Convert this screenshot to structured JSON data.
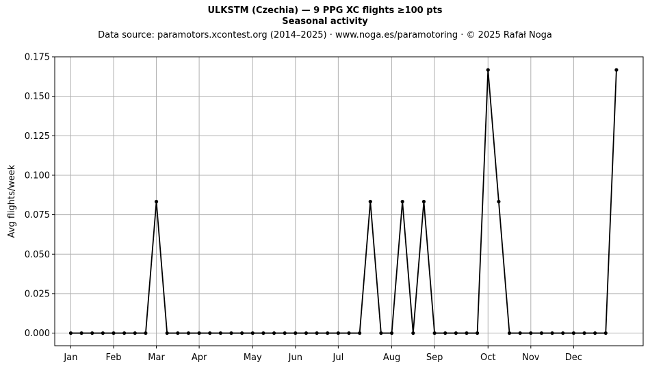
{
  "title": {
    "line1": "ULKSTM (Czechia)  —  9 PPG XC flights ≥100 pts",
    "line2": "Seasonal activity",
    "source": "Data source: paramotors.xcontest.org (2014–2025)  ·  www.noga.es/paramotoring  ·  © 2025 Rafał Noga"
  },
  "chart_data": {
    "type": "line",
    "title": "Seasonal activity",
    "xlabel": "",
    "ylabel": "Avg flights/week",
    "ylim": [
      -0.008,
      0.175
    ],
    "xlim": [
      -1.5,
      53.5
    ],
    "grid": true,
    "line_color": "#000000",
    "grid_color": "#b0b0b0",
    "y_ticks": [
      0.0,
      0.025,
      0.05,
      0.075,
      0.1,
      0.125,
      0.15,
      0.175
    ],
    "y_tick_labels": [
      "0.000",
      "0.025",
      "0.050",
      "0.075",
      "0.100",
      "0.125",
      "0.150",
      "0.175"
    ],
    "x_ticks": [
      0,
      4,
      8,
      12,
      17,
      21,
      25,
      30,
      34,
      39,
      43,
      47
    ],
    "x_tick_labels": [
      "Jan",
      "Feb",
      "Mar",
      "Apr",
      "May",
      "Jun",
      "Jul",
      "Aug",
      "Sep",
      "Oct",
      "Nov",
      "Dec"
    ],
    "series": [
      {
        "x": [
          0,
          1,
          2,
          3,
          4,
          5,
          6,
          7,
          8,
          9,
          10,
          11,
          12,
          13,
          14,
          15,
          16,
          17,
          18,
          19,
          20,
          21,
          22,
          23,
          24,
          25,
          26,
          27,
          28,
          29,
          30,
          31,
          32,
          33,
          34,
          35,
          36,
          37,
          38,
          39,
          40,
          41,
          42,
          43,
          44,
          45,
          46,
          47,
          48,
          49,
          50,
          51
        ],
        "values": [
          0,
          0,
          0,
          0,
          0,
          0,
          0,
          0,
          0.0833,
          0,
          0,
          0,
          0,
          0,
          0,
          0,
          0,
          0,
          0,
          0,
          0,
          0,
          0,
          0,
          0,
          0,
          0,
          0,
          0.0833,
          0,
          0,
          0.0833,
          0,
          0.0833,
          0,
          0,
          0,
          0,
          0,
          0.1667,
          0.0833,
          0,
          0,
          0,
          0,
          0,
          0,
          0,
          0,
          0,
          0,
          0.1667
        ]
      }
    ]
  }
}
